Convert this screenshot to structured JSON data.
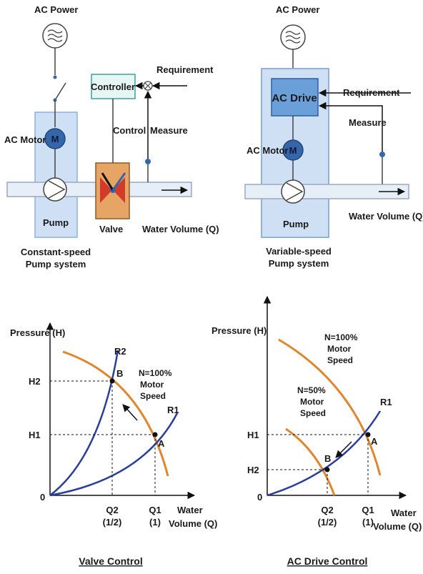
{
  "colors": {
    "pipe_fill": "#e6eef8",
    "pipe_stroke": "#9aa9bf",
    "system_box_fill": "#cfe0f5",
    "system_box_stroke": "#8fb1da",
    "motor": "#3566a9",
    "controller_fill": "#e6f6f3",
    "controller_stroke": "#3aa0a0",
    "valve_fill": "#e6a565",
    "valve_red": "#d23a2a",
    "ac_drive_fill": "#6b9fd9",
    "orange_curve": "#e0862e",
    "blue_curve": "#2a3f9b",
    "dot": "#3566a9"
  },
  "left_diagram": {
    "ac_power": "AC Power",
    "ac_motor": "AC Motor",
    "motor_symbol": "M",
    "pump": "Pump",
    "valve": "Valve",
    "controller": "Controller",
    "requirement": "Requirement",
    "control": "Control",
    "measure": "Measure",
    "water_volume": "Water Volume (Q)",
    "system_line1": "Constant-speed",
    "system_line2": "Pump system"
  },
  "right_diagram": {
    "ac_power": "AC Power",
    "ac_drive": "AC Drive",
    "requirement": "Requirement",
    "measure": "Measure",
    "ac_motor": "AC Motor",
    "motor_symbol": "M",
    "pump": "Pump",
    "water_volume": "Water Volume (Q)",
    "system_line1": "Variable-speed",
    "system_line2": "Pump system"
  },
  "left_graph": {
    "y_axis_label": "Pressure (H)",
    "origin": "0",
    "h2": "H2",
    "h1": "H1",
    "q2": "Q2",
    "q2_sub": "(1/2)",
    "q1": "Q1",
    "q1_sub": "(1)",
    "x_label_line1": "Water",
    "x_label_line2": "Volume (Q)",
    "r1": "R1",
    "r2": "R2",
    "point_a": "A",
    "point_b": "B",
    "speed_line1": "N=100%",
    "speed_line2": "Motor",
    "speed_line3": "Speed"
  },
  "right_graph": {
    "y_axis_label": "Pressure  (H)",
    "origin": "0",
    "h1": "H1",
    "h2": "H2",
    "q2": "Q2",
    "q2_sub": "(1/2)",
    "q1": "Q1",
    "q1_sub": "(1)",
    "x_label_line1": "Water",
    "x_label_line2": "Volume (Q)",
    "r1": "R1",
    "point_a": "A",
    "point_b": "B",
    "speed100_line1": "N=100%",
    "speed100_line2": "Motor",
    "speed100_line3": "Speed",
    "speed50_line1": "N=50%",
    "speed50_line2": "Motor",
    "speed50_line3": "Speed"
  },
  "captions": {
    "left": "Valve Control",
    "right": "AC Drive Control"
  }
}
